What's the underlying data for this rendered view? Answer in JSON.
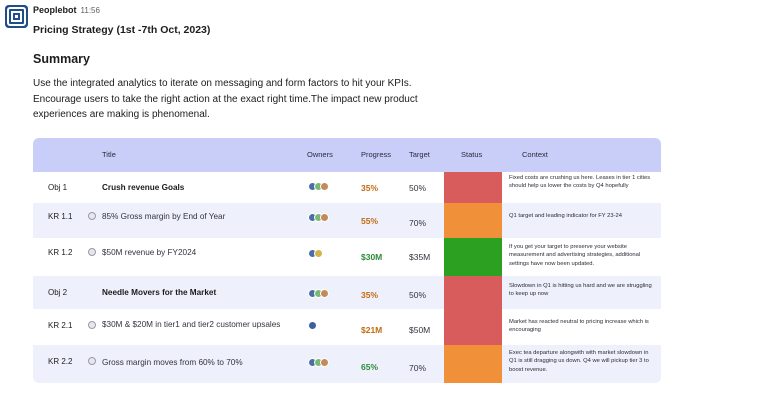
{
  "message": {
    "sender": "Peoplebot",
    "time": "11:56",
    "headline": "Pricing Strategy (1st -7th Oct, 2023)",
    "summary_title": "Summary",
    "summary_lines": [
      "Use the integrated analytics to iterate on messaging and form factors to hit your KPIs.",
      "Encourage users to take the right action at the exact right time.The impact new product",
      "experiences are making is phenomenal."
    ]
  },
  "table": {
    "headers": {
      "title": "Title",
      "owners": "Owners",
      "progress": "Progress",
      "target": "Target",
      "status": "Status",
      "context": "Context"
    },
    "rows": [
      {
        "id": "Obj 1",
        "title": "Crush revenue Goals",
        "is_objective": true,
        "progress": "35%",
        "progress_color": "#c26a12",
        "target": "50%",
        "status_color": "#d95c5c",
        "context": "Fixed costs are crushing us here. Leases in tier 1 cities should help us lower the costs by Q4 hopefully"
      },
      {
        "id": "KR 1.1",
        "title": "85% Gross margin by End of Year",
        "is_objective": false,
        "progress": "55%",
        "progress_color": "#c26a12",
        "target": "70%",
        "status_color": "#f0913a",
        "context": "Q1 target and leading indicator for FY 23-24"
      },
      {
        "id": "KR 1.2",
        "title": "$50M revenue by FY2024",
        "is_objective": false,
        "progress": "$30M",
        "progress_color": "#2c8a3a",
        "target": "$35M",
        "status_color": "#2ba021",
        "context": "If you get your target to preserve your website measurement and advertising strategies, additional settings have now been updated."
      },
      {
        "id": "Obj 2",
        "title": "Needle Movers for the Market",
        "is_objective": true,
        "progress": "35%",
        "progress_color": "#c26a12",
        "target": "50%",
        "status_color": "#d95c5c",
        "context": "Slowdown in Q1 is hitting us hard and we are struggling to keep up now"
      },
      {
        "id": "KR 2.1",
        "title": "$30M & $20M in tier1 and tier2 customer upsales",
        "is_objective": false,
        "progress": "$21M",
        "progress_color": "#c26a12",
        "target": "$50M",
        "status_color": "#d95c5c",
        "context": "Market has reacted neutral to pricing increase which is encouraging"
      },
      {
        "id": "KR 2.2",
        "title": "Gross margin moves from 60% to 70%",
        "is_objective": false,
        "progress": "65%",
        "progress_color": "#2c8a3a",
        "target": "70%",
        "status_color": "#f0913a",
        "context": "Exec tea departure alongwith with market slowdown in Q1 is still dragging us down. Q4 we will pickup tier 3 to boost revenue."
      }
    ]
  }
}
